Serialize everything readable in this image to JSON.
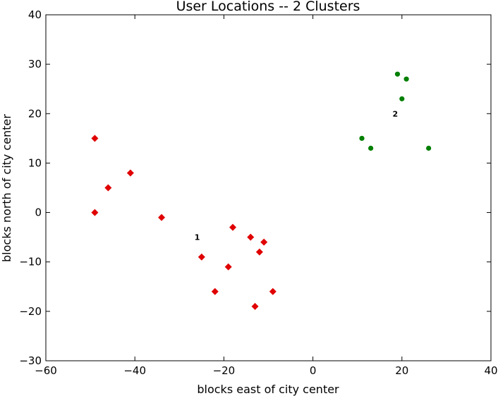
{
  "chart_data": {
    "type": "scatter",
    "title": "User Locations -- 2 Clusters",
    "xlabel": "blocks east of city center",
    "ylabel": "blocks north of city center",
    "xlim": [
      -60,
      40
    ],
    "ylim": [
      -30,
      40
    ],
    "xticks": [
      -60,
      -40,
      -20,
      0,
      20,
      40
    ],
    "yticks": [
      -30,
      -20,
      -10,
      0,
      10,
      20,
      30,
      40
    ],
    "xtick_labels": [
      "−60",
      "−40",
      "−20",
      "0",
      "20",
      "40"
    ],
    "ytick_labels": [
      "−30",
      "−20",
      "−10",
      "0",
      "10",
      "20",
      "30",
      "40"
    ],
    "grid": false,
    "series": [
      {
        "marker": "diamond",
        "color": "#e00000",
        "label": "1",
        "label_pos": [
          -26,
          -5
        ],
        "points": [
          [
            -49,
            15
          ],
          [
            -46,
            5
          ],
          [
            -41,
            8
          ],
          [
            -49,
            0
          ],
          [
            -34,
            -1
          ],
          [
            -25,
            -9
          ],
          [
            -22,
            -16
          ],
          [
            -19,
            -11
          ],
          [
            -18,
            -3
          ],
          [
            -14,
            -5
          ],
          [
            -13,
            -19
          ],
          [
            -12,
            -8
          ],
          [
            -11,
            -6
          ],
          [
            -9,
            -16
          ]
        ]
      },
      {
        "marker": "circle",
        "color": "#007f00",
        "label": "2",
        "label_pos": [
          18.5,
          20
        ],
        "points": [
          [
            11,
            15
          ],
          [
            13,
            13
          ],
          [
            19,
            28
          ],
          [
            20,
            23
          ],
          [
            21,
            27
          ],
          [
            26,
            13
          ]
        ]
      }
    ]
  }
}
